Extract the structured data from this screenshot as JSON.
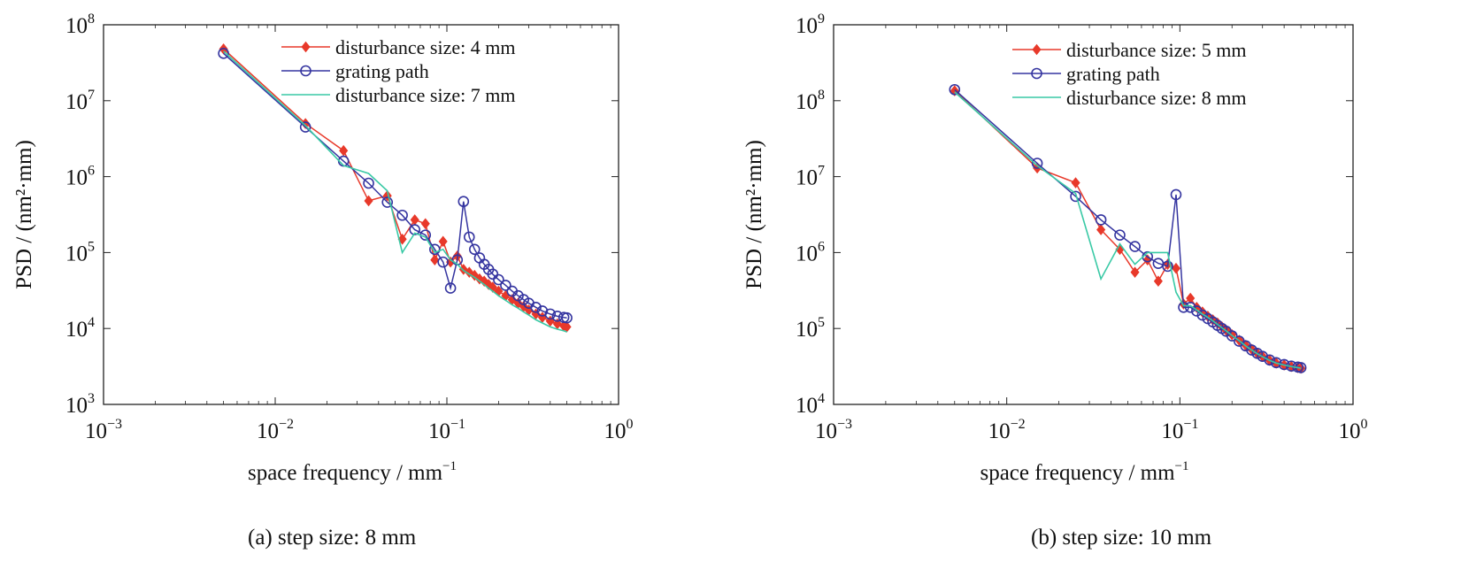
{
  "chart_data": [
    {
      "type": "line",
      "xlabel": "space frequency / mm",
      "xlabel_sup": "−1",
      "ylabel": "PSD / (nm²·mm)",
      "x_scale": "log",
      "y_scale": "log",
      "xlim": [
        0.001,
        1
      ],
      "ylim": [
        1000,
        100000000
      ],
      "x_ticks": [
        {
          "base": "10",
          "exp": "−3"
        },
        {
          "base": "10",
          "exp": "−2"
        },
        {
          "base": "10",
          "exp": "−1"
        },
        {
          "base": "10",
          "exp": "0"
        }
      ],
      "y_ticks": [
        {
          "base": "10",
          "exp": "3"
        },
        {
          "base": "10",
          "exp": "4"
        },
        {
          "base": "10",
          "exp": "5"
        },
        {
          "base": "10",
          "exp": "6"
        },
        {
          "base": "10",
          "exp": "7"
        },
        {
          "base": "10",
          "exp": "8"
        }
      ],
      "grid": false,
      "legend_position": "top-right",
      "caption": "(a) step size: 8 mm",
      "series": [
        {
          "name": "disturbance size: 4 mm",
          "color": "#e8392a",
          "marker": "diamond",
          "x": [
            0.005,
            0.015,
            0.025,
            0.035,
            0.045,
            0.055,
            0.065,
            0.075,
            0.085,
            0.095,
            0.105,
            0.115,
            0.125,
            0.135,
            0.145,
            0.155,
            0.165,
            0.175,
            0.185,
            0.2,
            0.22,
            0.24,
            0.26,
            0.28,
            0.3,
            0.33,
            0.36,
            0.4,
            0.44,
            0.48,
            0.5
          ],
          "y": [
            48000000,
            5000000,
            2200000,
            480000,
            560000,
            150000,
            270000,
            240000,
            80000,
            140000,
            75000,
            90000,
            60000,
            55000,
            50000,
            45000,
            42000,
            38000,
            35000,
            31000,
            27000,
            24000,
            21500,
            19500,
            17500,
            15500,
            14000,
            12500,
            11500,
            10800,
            10500
          ]
        },
        {
          "name": "grating path",
          "color": "#3535a0",
          "marker": "circle",
          "x": [
            0.005,
            0.015,
            0.025,
            0.035,
            0.045,
            0.055,
            0.065,
            0.075,
            0.085,
            0.095,
            0.105,
            0.115,
            0.125,
            0.135,
            0.145,
            0.155,
            0.165,
            0.175,
            0.185,
            0.2,
            0.22,
            0.24,
            0.26,
            0.28,
            0.3,
            0.33,
            0.36,
            0.4,
            0.44,
            0.48,
            0.5
          ],
          "y": [
            42000000,
            4500000,
            1600000,
            820000,
            460000,
            310000,
            200000,
            170000,
            110000,
            75000,
            34000,
            80000,
            470000,
            160000,
            110000,
            85000,
            70000,
            60000,
            52000,
            44000,
            37000,
            31000,
            27000,
            24000,
            21500,
            19000,
            17000,
            15500,
            14500,
            14000,
            13800
          ]
        },
        {
          "name": "disturbance size: 7 mm",
          "color": "#39c9a5",
          "marker": "none",
          "x": [
            0.005,
            0.015,
            0.025,
            0.035,
            0.045,
            0.055,
            0.065,
            0.075,
            0.085,
            0.095,
            0.105,
            0.115,
            0.125,
            0.135,
            0.145,
            0.155,
            0.165,
            0.175,
            0.185,
            0.2,
            0.22,
            0.24,
            0.26,
            0.28,
            0.3,
            0.33,
            0.36,
            0.4,
            0.44,
            0.48,
            0.5
          ],
          "y": [
            45000000,
            4700000,
            1400000,
            1100000,
            650000,
            100000,
            180000,
            160000,
            100000,
            110000,
            80000,
            70000,
            58000,
            52000,
            47000,
            42000,
            38000,
            34000,
            31000,
            27000,
            23500,
            20500,
            18500,
            16500,
            15000,
            13000,
            11800,
            10500,
            9800,
            9300,
            9000
          ]
        }
      ]
    },
    {
      "type": "line",
      "xlabel": "space frequency / mm",
      "xlabel_sup": "−1",
      "ylabel": "PSD / (nm²·mm)",
      "x_scale": "log",
      "y_scale": "log",
      "xlim": [
        0.001,
        1
      ],
      "ylim": [
        10000,
        1000000000
      ],
      "x_ticks": [
        {
          "base": "10",
          "exp": "−3"
        },
        {
          "base": "10",
          "exp": "−2"
        },
        {
          "base": "10",
          "exp": "−1"
        },
        {
          "base": "10",
          "exp": "0"
        }
      ],
      "y_ticks": [
        {
          "base": "10",
          "exp": "4"
        },
        {
          "base": "10",
          "exp": "5"
        },
        {
          "base": "10",
          "exp": "6"
        },
        {
          "base": "10",
          "exp": "7"
        },
        {
          "base": "10",
          "exp": "8"
        },
        {
          "base": "10",
          "exp": "9"
        }
      ],
      "grid": false,
      "legend_position": "top-right",
      "caption": "(b) step size: 10 mm",
      "series": [
        {
          "name": "disturbance size: 5 mm",
          "color": "#e8392a",
          "marker": "diamond",
          "x": [
            0.005,
            0.015,
            0.025,
            0.035,
            0.045,
            0.055,
            0.065,
            0.075,
            0.085,
            0.095,
            0.105,
            0.115,
            0.125,
            0.135,
            0.145,
            0.155,
            0.165,
            0.175,
            0.185,
            0.2,
            0.22,
            0.24,
            0.26,
            0.28,
            0.3,
            0.33,
            0.36,
            0.4,
            0.44,
            0.48,
            0.5
          ],
          "y": [
            135000000,
            13000000,
            8300000,
            2000000,
            1100000,
            550000,
            800000,
            420000,
            700000,
            620000,
            210000,
            250000,
            190000,
            165000,
            145000,
            130000,
            118000,
            105000,
            95000,
            83000,
            70000,
            60000,
            53000,
            47000,
            43000,
            38000,
            35000,
            33000,
            31500,
            30500,
            30000
          ]
        },
        {
          "name": "grating path",
          "color": "#3535a0",
          "marker": "circle",
          "x": [
            0.005,
            0.015,
            0.025,
            0.035,
            0.045,
            0.055,
            0.065,
            0.075,
            0.085,
            0.095,
            0.105,
            0.115,
            0.125,
            0.135,
            0.145,
            0.155,
            0.165,
            0.175,
            0.185,
            0.2,
            0.22,
            0.24,
            0.26,
            0.28,
            0.3,
            0.33,
            0.36,
            0.4,
            0.44,
            0.48,
            0.5
          ],
          "y": [
            140000000,
            15000000,
            5500000,
            2700000,
            1700000,
            1200000,
            880000,
            720000,
            660000,
            5800000,
            190000,
            190000,
            170000,
            150000,
            135000,
            122000,
            110000,
            100000,
            92000,
            80000,
            68000,
            59000,
            52000,
            47000,
            43000,
            38500,
            35500,
            33500,
            32000,
            31000,
            30500
          ]
        },
        {
          "name": "disturbance size: 8 mm",
          "color": "#39c9a5",
          "marker": "none",
          "x": [
            0.005,
            0.015,
            0.025,
            0.035,
            0.045,
            0.055,
            0.065,
            0.075,
            0.085,
            0.095,
            0.105,
            0.115,
            0.125,
            0.135,
            0.145,
            0.155,
            0.165,
            0.175,
            0.185,
            0.2,
            0.22,
            0.24,
            0.26,
            0.28,
            0.3,
            0.33,
            0.36,
            0.4,
            0.44,
            0.48,
            0.5
          ],
          "y": [
            130000000,
            14000000,
            6000000,
            450000,
            1300000,
            700000,
            1000000,
            1000000,
            1000000,
            300000,
            200000,
            200000,
            175000,
            155000,
            140000,
            126000,
            113000,
            102000,
            93000,
            81000,
            69000,
            59000,
            52000,
            46500,
            42500,
            38000,
            35000,
            33000,
            31500,
            30500,
            30000
          ]
        }
      ]
    }
  ]
}
